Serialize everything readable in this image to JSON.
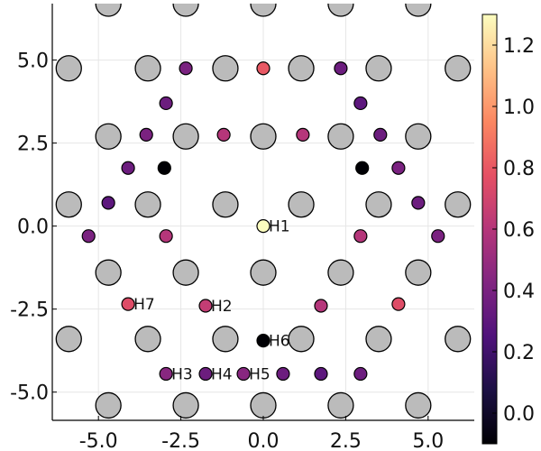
{
  "chart_data": {
    "type": "scatter",
    "xlim": [
      -6.4,
      6.4
    ],
    "ylim": [
      -5.85,
      6.7
    ],
    "x_ticks": [
      -5.0,
      -2.5,
      0.0,
      2.5,
      5.0
    ],
    "x_tick_labels": [
      "-5.0",
      "-2.5",
      "0.0",
      "2.5",
      "5.0"
    ],
    "y_ticks": [
      -5.0,
      -2.5,
      0.0,
      2.5,
      5.0
    ],
    "y_tick_labels": [
      "-5.0",
      "-2.5",
      "0.0",
      "2.5",
      "5.0"
    ],
    "grid": true,
    "framework_atoms": {
      "color": "#bbbbbb",
      "points": [
        [
          -4.7,
          6.7
        ],
        [
          -2.35,
          6.7
        ],
        [
          0,
          6.7
        ],
        [
          2.35,
          6.7
        ],
        [
          4.7,
          6.7
        ],
        [
          -5.9,
          4.75
        ],
        [
          -3.5,
          4.75
        ],
        [
          -1.15,
          4.75
        ],
        [
          1.15,
          4.75
        ],
        [
          3.5,
          4.75
        ],
        [
          5.9,
          4.75
        ],
        [
          -4.7,
          2.7
        ],
        [
          -2.35,
          2.7
        ],
        [
          0,
          2.7
        ],
        [
          2.35,
          2.7
        ],
        [
          4.7,
          2.7
        ],
        [
          -5.9,
          0.65
        ],
        [
          -3.5,
          0.65
        ],
        [
          -1.15,
          0.65
        ],
        [
          1.15,
          0.65
        ],
        [
          3.5,
          0.65
        ],
        [
          5.9,
          0.65
        ],
        [
          -4.7,
          -1.4
        ],
        [
          -2.35,
          -1.4
        ],
        [
          0,
          -1.4
        ],
        [
          2.35,
          -1.4
        ],
        [
          4.7,
          -1.4
        ],
        [
          -5.9,
          -3.4
        ],
        [
          -3.5,
          -3.4
        ],
        [
          -1.15,
          -3.4
        ],
        [
          1.15,
          -3.4
        ],
        [
          3.5,
          -3.4
        ],
        [
          5.9,
          -3.4
        ],
        [
          -4.7,
          -5.4
        ],
        [
          -2.35,
          -5.4
        ],
        [
          0,
          -5.4
        ],
        [
          2.35,
          -5.4
        ],
        [
          4.7,
          -5.4
        ]
      ]
    },
    "sites": [
      {
        "x": 0.0,
        "y": 0.0,
        "value": 1.3,
        "label": "H1"
      },
      {
        "x": -1.75,
        "y": -2.4,
        "value": 0.65,
        "label": "H2"
      },
      {
        "x": -2.95,
        "y": -4.45,
        "value": 0.45,
        "label": "H3"
      },
      {
        "x": -1.75,
        "y": -4.45,
        "value": 0.35,
        "label": "H4"
      },
      {
        "x": -0.6,
        "y": -4.45,
        "value": 0.45,
        "label": "H5"
      },
      {
        "x": 0.0,
        "y": -3.45,
        "value": -0.1,
        "label": "H6"
      },
      {
        "x": -4.1,
        "y": -2.35,
        "value": 0.75,
        "label": "H7"
      },
      {
        "x": 0.0,
        "y": 4.75,
        "value": 0.8,
        "label": ""
      },
      {
        "x": -2.35,
        "y": 4.75,
        "value": 0.4,
        "label": ""
      },
      {
        "x": 2.35,
        "y": 4.75,
        "value": 0.35,
        "label": ""
      },
      {
        "x": -2.95,
        "y": 3.7,
        "value": 0.35,
        "label": ""
      },
      {
        "x": 2.95,
        "y": 3.7,
        "value": 0.3,
        "label": ""
      },
      {
        "x": -3.55,
        "y": 2.75,
        "value": 0.4,
        "label": ""
      },
      {
        "x": 3.55,
        "y": 2.75,
        "value": 0.35,
        "label": ""
      },
      {
        "x": -1.2,
        "y": 2.75,
        "value": 0.6,
        "label": ""
      },
      {
        "x": 1.2,
        "y": 2.75,
        "value": 0.6,
        "label": ""
      },
      {
        "x": -4.1,
        "y": 1.75,
        "value": 0.35,
        "label": ""
      },
      {
        "x": 4.1,
        "y": 1.75,
        "value": 0.4,
        "label": ""
      },
      {
        "x": -3.0,
        "y": 1.75,
        "value": -0.1,
        "label": ""
      },
      {
        "x": 3.0,
        "y": 1.75,
        "value": -0.1,
        "label": ""
      },
      {
        "x": -4.7,
        "y": 0.7,
        "value": 0.3,
        "label": ""
      },
      {
        "x": 4.7,
        "y": 0.7,
        "value": 0.35,
        "label": ""
      },
      {
        "x": -5.3,
        "y": -0.3,
        "value": 0.4,
        "label": ""
      },
      {
        "x": 5.3,
        "y": -0.3,
        "value": 0.4,
        "label": ""
      },
      {
        "x": -2.95,
        "y": -0.3,
        "value": 0.6,
        "label": ""
      },
      {
        "x": 2.95,
        "y": -0.3,
        "value": 0.6,
        "label": ""
      },
      {
        "x": 1.75,
        "y": -2.4,
        "value": 0.6,
        "label": ""
      },
      {
        "x": 4.1,
        "y": -2.35,
        "value": 0.75,
        "label": ""
      },
      {
        "x": 0.6,
        "y": -4.45,
        "value": 0.35,
        "label": ""
      },
      {
        "x": 1.75,
        "y": -4.45,
        "value": 0.3,
        "label": ""
      },
      {
        "x": 2.95,
        "y": -4.45,
        "value": 0.35,
        "label": ""
      }
    ],
    "colorbar": {
      "colormap": "magma",
      "range": [
        -0.1,
        1.3
      ],
      "ticks": [
        0.0,
        0.2,
        0.4,
        0.6,
        0.8,
        1.0,
        1.2
      ],
      "tick_labels": [
        "0.0",
        "0.2",
        "0.4",
        "0.6",
        "0.8",
        "1.0",
        "1.2"
      ]
    }
  }
}
